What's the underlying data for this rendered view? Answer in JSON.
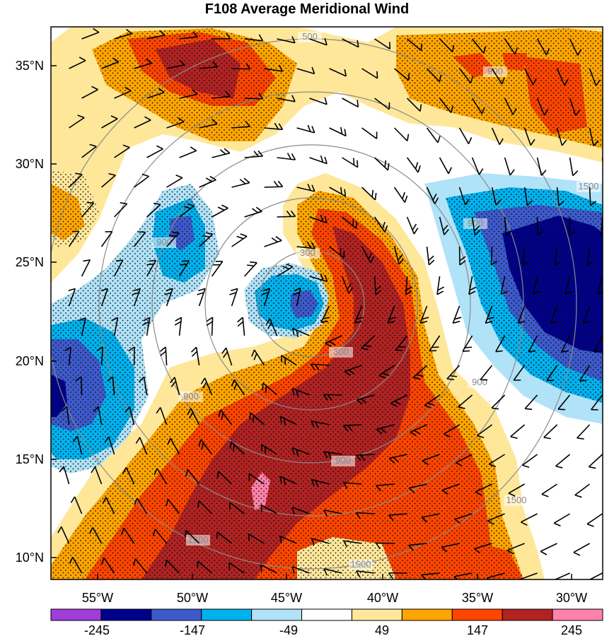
{
  "title": "F108 Average Meridional Wind",
  "latitude_labels": [
    "35°N",
    "30°N",
    "25°N",
    "20°N",
    "15°N",
    "10°N"
  ],
  "longitude_labels": [
    "55°W",
    "50°W",
    "45°W",
    "40°W",
    "35°W",
    "30°W"
  ],
  "colorbar": {
    "labels": [
      "-245",
      "-147",
      "-49",
      "49",
      "147",
      "245"
    ],
    "colors": [
      "#a03cd8",
      "#00008b",
      "#3d5acd",
      "#00b2ee",
      "#b0e2f8",
      "#ffffff",
      "#ffe79a",
      "#ffa500",
      "#ff4500",
      "#b22222",
      "#ff82ab"
    ]
  },
  "range_ring_labels": [
    "300",
    "300",
    "900",
    "900",
    "900",
    "900",
    "900",
    "1500",
    "1500",
    "1500",
    "1500",
    "500",
    "900"
  ],
  "map_data": {
    "extent": {
      "lon": [
        -57.5,
        -29.5
      ],
      "lat": [
        9,
        37
      ]
    },
    "variable": "meridional wind",
    "contour_levels": [
      -245,
      -196,
      -147,
      -98,
      -49,
      49,
      98,
      147,
      196,
      245
    ],
    "overlays": [
      "wind barbs",
      "stippling",
      "range rings"
    ]
  }
}
